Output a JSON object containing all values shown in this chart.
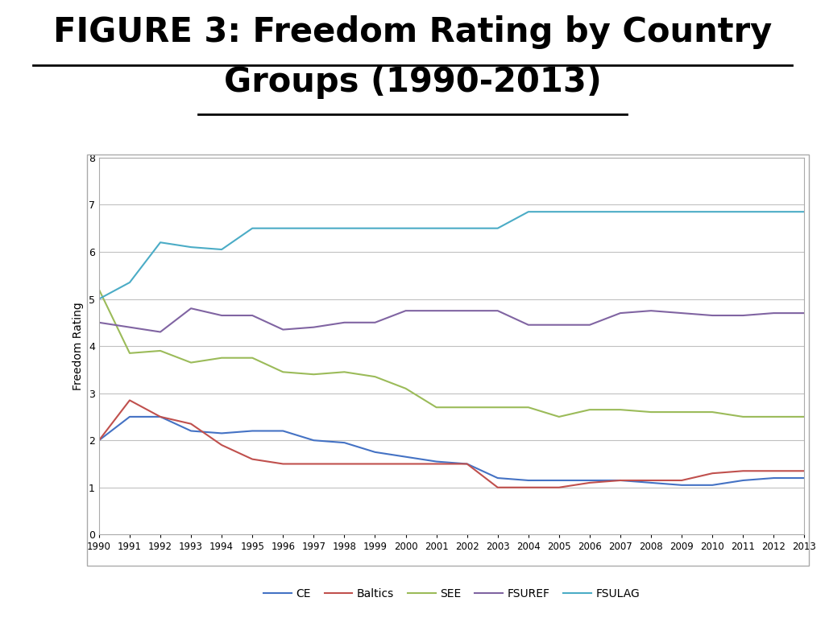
{
  "title_line1": "FIGURE 3: Freedom Rating by Country",
  "title_line2": "Groups (1990-2013)",
  "ylabel": "Freedom Rating",
  "years": [
    1990,
    1991,
    1992,
    1993,
    1994,
    1995,
    1996,
    1997,
    1998,
    1999,
    2000,
    2001,
    2002,
    2003,
    2004,
    2005,
    2006,
    2007,
    2008,
    2009,
    2010,
    2011,
    2012,
    2013
  ],
  "series_order": [
    "CE",
    "Baltics",
    "SEE",
    "FSUREF",
    "FSULAG"
  ],
  "series": {
    "CE": {
      "color": "#4472C4",
      "values": [
        2.0,
        2.5,
        2.5,
        2.2,
        2.15,
        2.2,
        2.2,
        2.0,
        1.95,
        1.75,
        1.65,
        1.55,
        1.5,
        1.2,
        1.15,
        1.15,
        1.15,
        1.15,
        1.1,
        1.05,
        1.05,
        1.15,
        1.2,
        1.2
      ]
    },
    "Baltics": {
      "color": "#C0504D",
      "values": [
        2.0,
        2.85,
        2.5,
        2.35,
        1.9,
        1.6,
        1.5,
        1.5,
        1.5,
        1.5,
        1.5,
        1.5,
        1.5,
        1.0,
        1.0,
        1.0,
        1.1,
        1.15,
        1.15,
        1.15,
        1.3,
        1.35,
        1.35,
        1.35
      ]
    },
    "SEE": {
      "color": "#9BBB59",
      "values": [
        5.2,
        3.85,
        3.9,
        3.65,
        3.75,
        3.75,
        3.45,
        3.4,
        3.45,
        3.35,
        3.1,
        2.7,
        2.7,
        2.7,
        2.7,
        2.5,
        2.65,
        2.65,
        2.6,
        2.6,
        2.6,
        2.5,
        2.5,
        2.5
      ]
    },
    "FSUREF": {
      "color": "#8064A2",
      "values": [
        4.5,
        4.4,
        4.3,
        4.8,
        4.65,
        4.65,
        4.35,
        4.4,
        4.5,
        4.5,
        4.75,
        4.75,
        4.75,
        4.75,
        4.45,
        4.45,
        4.45,
        4.7,
        4.75,
        4.7,
        4.65,
        4.65,
        4.7,
        4.7
      ]
    },
    "FSULAG": {
      "color": "#4BACC6",
      "values": [
        5.0,
        5.35,
        6.2,
        6.1,
        6.05,
        6.5,
        6.5,
        6.5,
        6.5,
        6.5,
        6.5,
        6.5,
        6.5,
        6.5,
        6.85,
        6.85,
        6.85,
        6.85,
        6.85,
        6.85,
        6.85,
        6.85,
        6.85,
        6.85
      ]
    }
  },
  "ylim": [
    0,
    8
  ],
  "yticks": [
    0,
    1,
    2,
    3,
    4,
    5,
    6,
    7,
    8
  ],
  "bg_color": "#FFFFFF",
  "plot_bg_color": "#FFFFFF",
  "grid_color": "#C0C0C0",
  "title_fontsize": 30,
  "title_fontweight": "bold",
  "legend_fontsize": 10,
  "axis_label_fontsize": 10,
  "tick_fontsize": 9
}
